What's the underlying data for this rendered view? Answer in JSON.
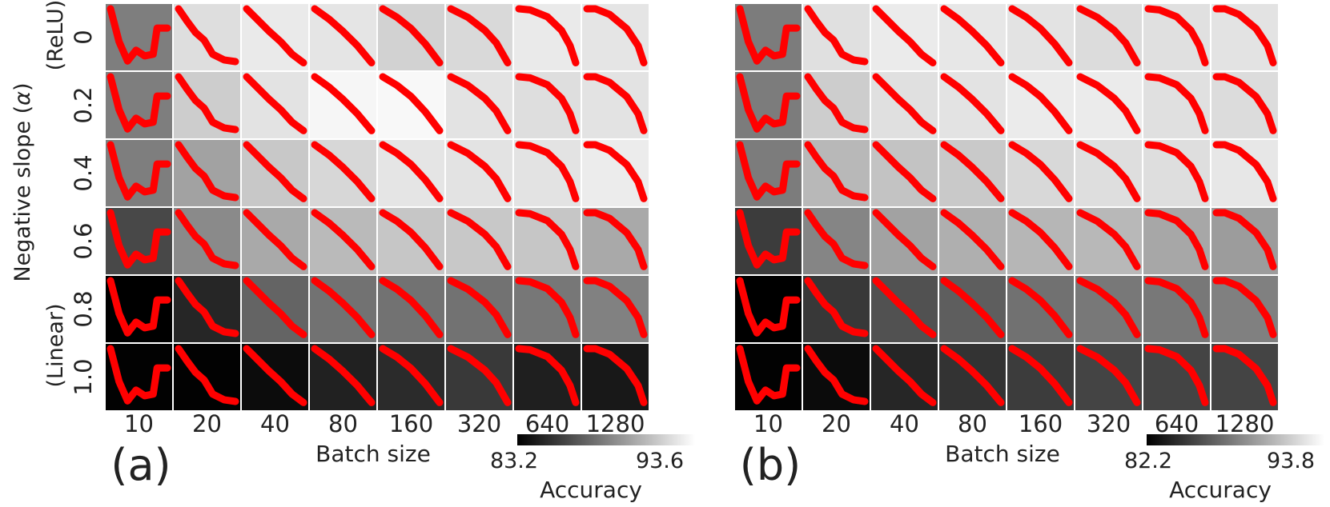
{
  "chart_data": {
    "type": "heatmap",
    "note": "Each cell color = accuracy; the red curve inside each cell is a small-multiple training trajectory (normalized y, 0 = top).",
    "shared": {
      "ylabel_main": "Negative slope (",
      "ylabel_alpha": "α",
      "ylabel_close": ")",
      "row_top_note": "(ReLU)",
      "row_bottom_note": "(Linear)",
      "xlabel": "Batch size",
      "colorbar_label": "Accuracy",
      "rows": [
        "0",
        "0.2",
        "0.4",
        "0.6",
        "0.8",
        "1.0"
      ],
      "cols": [
        "10",
        "20",
        "40",
        "80",
        "160",
        "320",
        "640",
        "1280"
      ],
      "curve_color": "#ff0000",
      "curves": [
        [
          [
            0.0,
            0.0
          ],
          [
            0.15,
            0.58
          ],
          [
            0.3,
            0.92
          ],
          [
            0.45,
            0.73
          ],
          [
            0.6,
            0.83
          ],
          [
            0.75,
            0.8
          ],
          [
            0.82,
            0.34
          ],
          [
            1.0,
            0.34
          ]
        ],
        [
          [
            0.0,
            0.0
          ],
          [
            0.15,
            0.22
          ],
          [
            0.3,
            0.42
          ],
          [
            0.45,
            0.55
          ],
          [
            0.6,
            0.8
          ],
          [
            0.8,
            0.9
          ],
          [
            1.0,
            0.93
          ]
        ],
        [
          [
            0.0,
            0.0
          ],
          [
            0.2,
            0.2
          ],
          [
            0.4,
            0.4
          ],
          [
            0.6,
            0.58
          ],
          [
            0.8,
            0.8
          ],
          [
            1.0,
            0.95
          ]
        ],
        [
          [
            0.0,
            0.0
          ],
          [
            0.25,
            0.18
          ],
          [
            0.5,
            0.4
          ],
          [
            0.75,
            0.65
          ],
          [
            1.0,
            0.95
          ]
        ],
        [
          [
            0.0,
            0.0
          ],
          [
            0.25,
            0.15
          ],
          [
            0.5,
            0.35
          ],
          [
            0.75,
            0.62
          ],
          [
            1.0,
            0.95
          ]
        ],
        [
          [
            0.0,
            0.0
          ],
          [
            0.3,
            0.15
          ],
          [
            0.6,
            0.38
          ],
          [
            0.8,
            0.6
          ],
          [
            1.0,
            0.95
          ]
        ],
        [
          [
            0.0,
            0.0
          ],
          [
            0.2,
            0.02
          ],
          [
            0.5,
            0.14
          ],
          [
            0.75,
            0.38
          ],
          [
            0.9,
            0.65
          ],
          [
            1.0,
            0.95
          ]
        ],
        [
          [
            0.0,
            0.0
          ],
          [
            0.15,
            0.0
          ],
          [
            0.4,
            0.1
          ],
          [
            0.7,
            0.35
          ],
          [
            0.9,
            0.65
          ],
          [
            1.0,
            0.95
          ]
        ]
      ]
    },
    "panels": [
      {
        "label": "(a)",
        "colorbar_min": "83.2",
        "colorbar_max": "93.6",
        "vmin": 83.2,
        "vmax": 93.6,
        "values": [
          [
            88.5,
            92.5,
            93.0,
            92.8,
            92.0,
            92.3,
            93.0,
            92.8
          ],
          [
            88.5,
            91.8,
            92.7,
            93.5,
            93.6,
            92.7,
            92.5,
            92.7
          ],
          [
            88.5,
            90.0,
            91.6,
            92.2,
            92.8,
            92.7,
            92.7,
            93.1
          ],
          [
            86.2,
            89.0,
            90.3,
            91.0,
            91.5,
            91.6,
            91.5,
            90.3
          ],
          [
            83.2,
            84.8,
            87.4,
            88.0,
            88.0,
            88.0,
            88.2,
            88.6
          ],
          [
            83.3,
            83.3,
            83.7,
            84.6,
            85.0,
            85.6,
            84.5,
            84.2
          ]
        ],
        "curve_shapes": [
          [
            0,
            1,
            2,
            3,
            4,
            5,
            6,
            7
          ],
          [
            0,
            1,
            2,
            3,
            4,
            5,
            6,
            7
          ],
          [
            0,
            1,
            2,
            3,
            4,
            5,
            6,
            7
          ],
          [
            0,
            1,
            2,
            3,
            4,
            5,
            6,
            7
          ],
          [
            0,
            1,
            2,
            3,
            4,
            5,
            6,
            7
          ],
          [
            0,
            1,
            2,
            3,
            4,
            5,
            6,
            7
          ]
        ]
      },
      {
        "label": "(b)",
        "colorbar_min": "82.2",
        "colorbar_max": "93.8",
        "vmin": 82.2,
        "vmax": 93.8,
        "values": [
          [
            88.0,
            92.7,
            93.2,
            93.0,
            92.8,
            92.5,
            92.7,
            92.8
          ],
          [
            88.0,
            91.8,
            92.7,
            92.8,
            93.2,
            93.2,
            92.7,
            92.5
          ],
          [
            88.0,
            90.8,
            91.3,
            91.6,
            92.3,
            92.6,
            92.6,
            93.0
          ],
          [
            85.0,
            88.4,
            89.8,
            90.4,
            90.7,
            90.8,
            90.0,
            89.5
          ],
          [
            82.2,
            84.8,
            86.0,
            86.6,
            87.5,
            87.8,
            87.8,
            88.2
          ],
          [
            82.3,
            82.7,
            84.0,
            84.6,
            85.0,
            85.4,
            85.4,
            85.4
          ]
        ],
        "curve_shapes": [
          [
            0,
            1,
            2,
            3,
            4,
            5,
            6,
            7
          ],
          [
            0,
            1,
            2,
            3,
            4,
            5,
            6,
            7
          ],
          [
            0,
            1,
            2,
            3,
            4,
            5,
            6,
            7
          ],
          [
            0,
            1,
            2,
            3,
            4,
            5,
            6,
            7
          ],
          [
            0,
            1,
            2,
            3,
            4,
            5,
            6,
            7
          ],
          [
            0,
            1,
            2,
            3,
            4,
            5,
            6,
            7
          ]
        ]
      }
    ]
  }
}
